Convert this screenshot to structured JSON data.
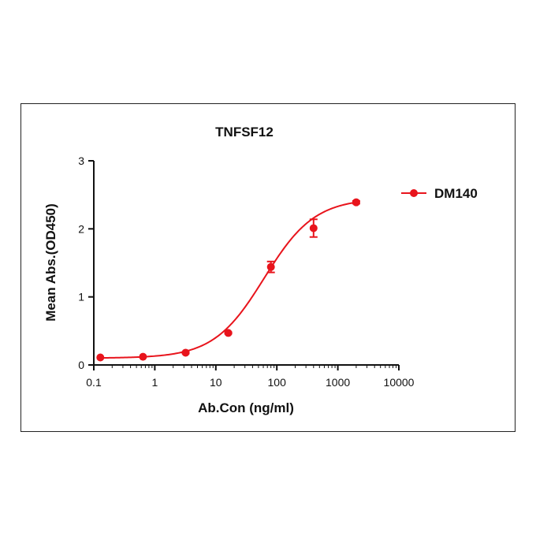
{
  "chart_data": {
    "type": "scatter",
    "title": "TNFSF12",
    "xlabel": "Ab.Con (ng/ml)",
    "ylabel": "Mean Abs.(OD450)",
    "x_scale": "log",
    "xlim": [
      0.1,
      10000
    ],
    "ylim": [
      0,
      3
    ],
    "x_ticks": [
      0.1,
      1,
      10,
      100,
      1000,
      10000
    ],
    "x_tick_labels": [
      "0.1",
      "1",
      "10",
      "100",
      "1000",
      "10000"
    ],
    "y_ticks": [
      0,
      1,
      2,
      3
    ],
    "y_tick_labels": [
      "0",
      "1",
      "2",
      "3"
    ],
    "legend_position": "right",
    "series": [
      {
        "name": "DM140",
        "color": "#e8141c",
        "points": [
          {
            "x": 0.128,
            "y": 0.11,
            "err": 0.0
          },
          {
            "x": 0.64,
            "y": 0.12,
            "err": 0.0
          },
          {
            "x": 3.2,
            "y": 0.18,
            "err": 0.01
          },
          {
            "x": 16,
            "y": 0.47,
            "err": 0.01
          },
          {
            "x": 80,
            "y": 1.44,
            "err": 0.08
          },
          {
            "x": 400,
            "y": 2.01,
            "err": 0.13
          },
          {
            "x": 2000,
            "y": 2.39,
            "err": 0.02
          }
        ],
        "fit": {
          "bottom": 0.1,
          "top": 2.45,
          "ec50": 62,
          "hill": 1.05
        }
      }
    ]
  }
}
